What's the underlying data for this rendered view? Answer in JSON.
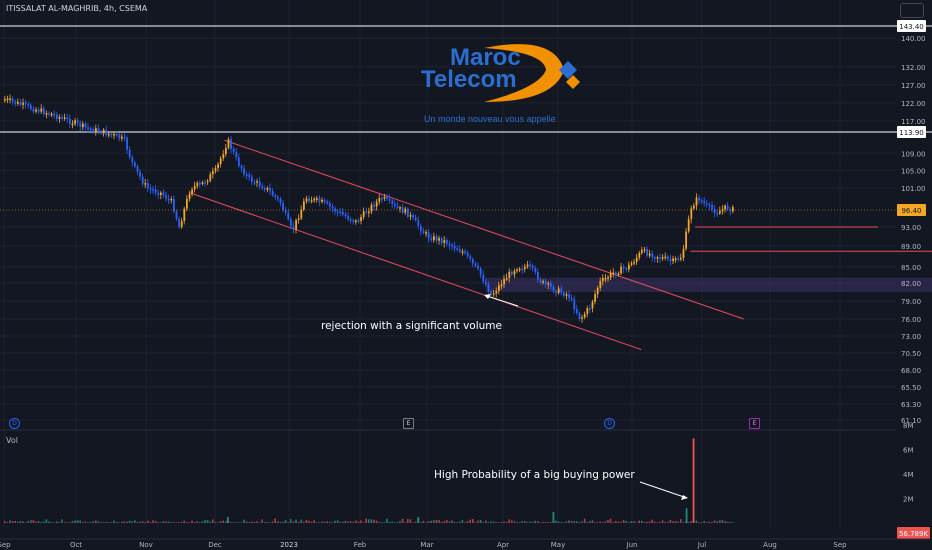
{
  "header": {
    "symbol": "ITISSALAT AL-MAGHRIB, 4h, CSEMA"
  },
  "logo": {
    "line1": "Maroc",
    "line2": "Telecom",
    "tagline": "Un monde nouveau vous appelle"
  },
  "annotations": {
    "rejection": "rejection with a significant volume",
    "buying_power": "High Probability of  a  big buying power"
  },
  "volume_label": "Vol",
  "events": [
    "D",
    "E",
    "D",
    "E"
  ],
  "chart_data": {
    "type": "candlestick",
    "title": "ITISSALAT AL-MAGHRIB, 4h, CSEMA",
    "y_ticks": [
      140.0,
      132.0,
      127.0,
      122.0,
      117.0,
      109.0,
      105.0,
      101.0,
      93.0,
      89.0,
      85.0,
      82.0,
      79.0,
      76.0,
      73.0,
      70.5,
      68.0,
      65.5,
      63.3,
      61.1
    ],
    "x_labels": [
      "Sep",
      "Oct",
      "Nov",
      "Dec",
      "2023",
      "Feb",
      "Mar",
      "Apr",
      "May",
      "Jun",
      "Jul",
      "Aug",
      "Sep"
    ],
    "price_labels": [
      {
        "value": 143.4,
        "kind": "horizontal line"
      },
      {
        "value": 113.9,
        "kind": "horizontal line"
      },
      {
        "value": 96.4,
        "kind": "last price"
      }
    ],
    "volume_ticks": [
      "8M",
      "6M",
      "4M",
      "2M"
    ],
    "last_volume": "56.789K",
    "price_path": [
      [
        "2022-09-01",
        123
      ],
      [
        "2022-09-10",
        121
      ],
      [
        "2022-09-20",
        119
      ],
      [
        "2022-09-28",
        117
      ],
      [
        "2022-10-05",
        115
      ],
      [
        "2022-10-12",
        114
      ],
      [
        "2022-10-18",
        113
      ],
      [
        "2022-10-22",
        112
      ],
      [
        "2022-10-26",
        106
      ],
      [
        "2022-11-01",
        101
      ],
      [
        "2022-11-07",
        100
      ],
      [
        "2022-11-12",
        98
      ],
      [
        "2022-11-15",
        93
      ],
      [
        "2022-11-20",
        101
      ],
      [
        "2022-11-25",
        102
      ],
      [
        "2022-12-01",
        105
      ],
      [
        "2022-12-06",
        112
      ],
      [
        "2022-12-10",
        107
      ],
      [
        "2022-12-15",
        103
      ],
      [
        "2022-12-22",
        101
      ],
      [
        "2022-12-28",
        98
      ],
      [
        "2023-01-02",
        92
      ],
      [
        "2023-01-08",
        99
      ],
      [
        "2023-01-15",
        98
      ],
      [
        "2023-01-22",
        96
      ],
      [
        "2023-01-30",
        94
      ],
      [
        "2023-02-05",
        97
      ],
      [
        "2023-02-10",
        99
      ],
      [
        "2023-02-15",
        97
      ],
      [
        "2023-02-20",
        96
      ],
      [
        "2023-03-01",
        91
      ],
      [
        "2023-03-08",
        90
      ],
      [
        "2023-03-15",
        88
      ],
      [
        "2023-03-22",
        84
      ],
      [
        "2023-03-27",
        80
      ],
      [
        "2023-04-02",
        83
      ],
      [
        "2023-04-08",
        85
      ],
      [
        "2023-04-15",
        85
      ],
      [
        "2023-04-22",
        82
      ],
      [
        "2023-04-28",
        81
      ],
      [
        "2023-05-05",
        80
      ],
      [
        "2023-05-10",
        76
      ],
      [
        "2023-05-14",
        78
      ],
      [
        "2023-05-18",
        82
      ],
      [
        "2023-05-24",
        84
      ],
      [
        "2023-05-30",
        85
      ],
      [
        "2023-06-05",
        88
      ],
      [
        "2023-06-12",
        87
      ],
      [
        "2023-06-18",
        86
      ],
      [
        "2023-06-22",
        87
      ],
      [
        "2023-06-26",
        97
      ],
      [
        "2023-06-29",
        99
      ],
      [
        "2023-07-03",
        97
      ],
      [
        "2023-07-08",
        96
      ],
      [
        "2023-07-12",
        97
      ],
      [
        "2023-07-15",
        96.4
      ]
    ],
    "channel": {
      "upper": [
        [
          "2022-12-05",
          112
        ],
        [
          "2023-07-20",
          76
        ]
      ],
      "lower": [
        [
          "2022-11-20",
          100
        ],
        [
          "2023-06-05",
          71
        ]
      ]
    },
    "levels": [
      {
        "value": 143.4,
        "from": "2022-09-01",
        "to": "2023-09-15"
      },
      {
        "value": 113.9,
        "from": "2022-09-01",
        "to": "2023-09-15"
      },
      {
        "value": 93,
        "from": "2023-06-28",
        "to": "2023-08-31"
      },
      {
        "value": 88,
        "from": "2023-06-26",
        "to": "2023-09-15"
      }
    ],
    "zone": {
      "from": "2023-03-25",
      "to": "2023-09-15",
      "low": 80.5,
      "high": 83
    },
    "volume": {
      "typical_M": [
        0.05,
        0.4
      ],
      "spikes": [
        {
          "date": "2022-12-06",
          "value_M": 0.5
        },
        {
          "date": "2023-02-25",
          "value_M": 0.5
        },
        {
          "date": "2023-04-28",
          "value_M": 0.9
        },
        {
          "date": "2023-06-24",
          "value_M": 1.2
        },
        {
          "date": "2023-06-27",
          "value_M": 6.9
        }
      ]
    }
  }
}
